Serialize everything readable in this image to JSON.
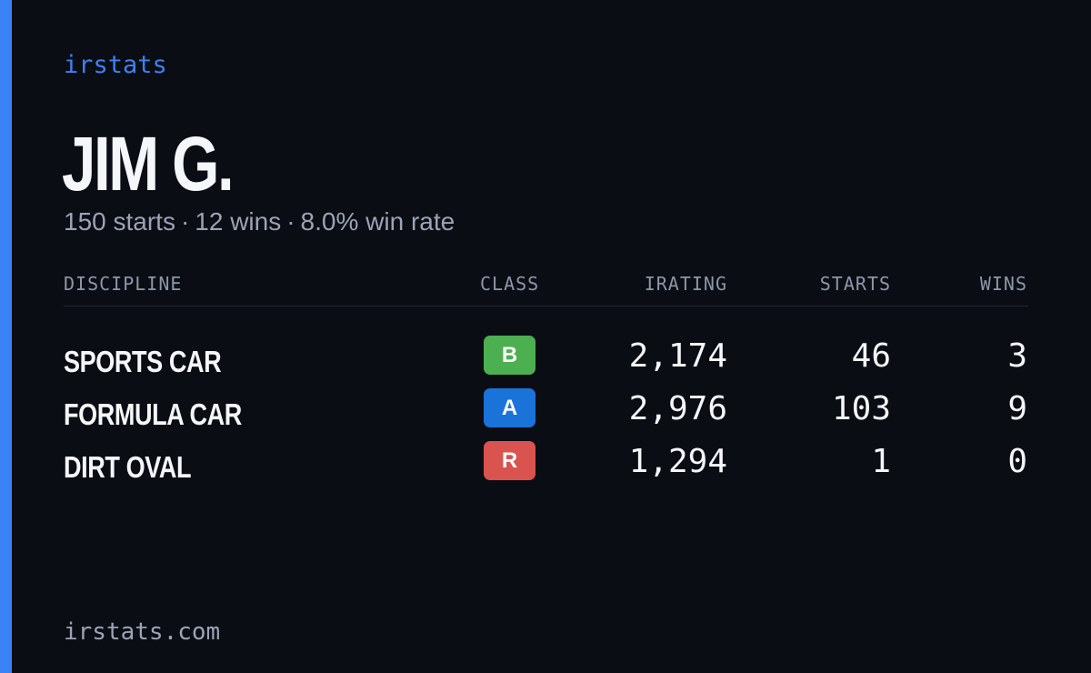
{
  "brand": "irstats",
  "driver": {
    "name": "JIM G.",
    "starts_text": "150 starts",
    "wins_text": "12 wins",
    "win_rate_text": "8.0% win rate",
    "separator": "·"
  },
  "table": {
    "headers": {
      "discipline": "DISCIPLINE",
      "class": "CLASS",
      "irating": "IRATING",
      "starts": "STARTS",
      "wins": "WINS"
    },
    "rows": [
      {
        "discipline": "SPORTS CAR",
        "class": "B",
        "class_color": "#4caf50",
        "irating": "2,174",
        "starts": "46",
        "wins": "3"
      },
      {
        "discipline": "FORMULA CAR",
        "class": "A",
        "class_color": "#1a73d9",
        "irating": "2,976",
        "starts": "103",
        "wins": "9"
      },
      {
        "discipline": "DIRT OVAL",
        "class": "R",
        "class_color": "#d9534f",
        "irating": "1,294",
        "starts": "1",
        "wins": "0"
      }
    ]
  },
  "footer": "irstats.com",
  "colors": {
    "accent": "#3b82f6",
    "background": "#0a0d14"
  }
}
